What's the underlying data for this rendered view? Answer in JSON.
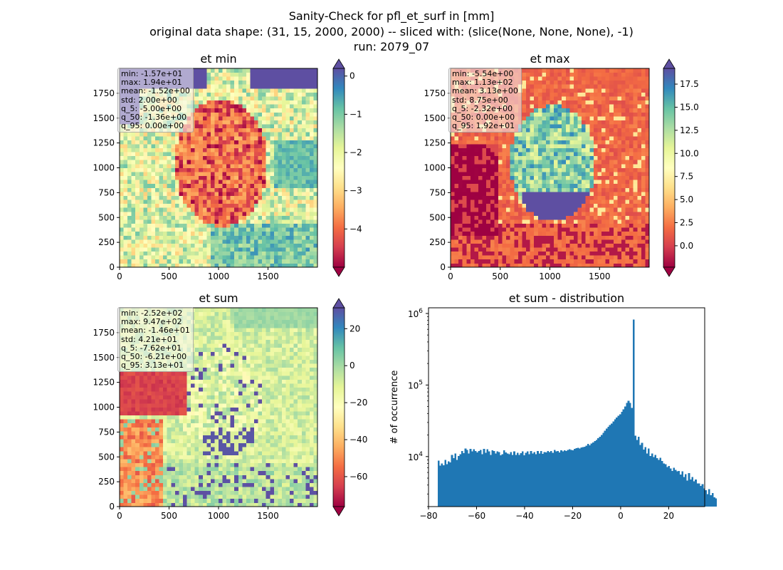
{
  "suptitle": {
    "line1": "Sanity-Check for pfl_et_surf in [mm]",
    "line2": "original data shape: (31, 15, 2000, 2000) -- sliced with: (slice(None, None, None), -1)",
    "line3": "run: 2079_07"
  },
  "colors": {
    "spectral": [
      "#9e0142",
      "#d53e4f",
      "#f46d43",
      "#fdae61",
      "#fee08b",
      "#ffffbf",
      "#e6f598",
      "#abdda4",
      "#66c2a5",
      "#3288bd",
      "#5e4fa2"
    ],
    "hist_bar": "#1f77b4"
  },
  "chart_data": [
    {
      "type": "heatmap",
      "title": "et min",
      "xlim": [
        0,
        2000
      ],
      "ylim": [
        0,
        2000
      ],
      "xticks": [
        0,
        500,
        1000,
        1500
      ],
      "yticks": [
        0,
        250,
        500,
        750,
        1000,
        1250,
        1500,
        1750
      ],
      "colorbar": {
        "range": [
          -5.0,
          0.2
        ],
        "ticks": [
          0,
          -1,
          -2,
          -3,
          -4
        ],
        "extend": "both",
        "cmap": "Spectral"
      },
      "stats": [
        "min: -1.57e+01",
        "max: 1.94e+01",
        "mean: -1.52e+00",
        "std: 2.00e+00",
        "q_5: -5.00e+00",
        "q_50: -1.36e+00",
        "q_95: 0.00e+00"
      ]
    },
    {
      "type": "heatmap",
      "title": "et max",
      "xlim": [
        0,
        2000
      ],
      "ylim": [
        0,
        2000
      ],
      "xticks": [
        0,
        500,
        1000,
        1500
      ],
      "yticks": [
        0,
        250,
        500,
        750,
        1000,
        1250,
        1500,
        1750
      ],
      "colorbar": {
        "range": [
          -2.32,
          19.2
        ],
        "ticks": [
          17.5,
          15.0,
          12.5,
          10.0,
          7.5,
          5.0,
          2.5,
          0.0
        ],
        "tick_labels": [
          "17.5",
          "15.0",
          "12.5",
          "10.0",
          "7.5",
          "5.0",
          "2.5",
          "0.0"
        ],
        "extend": "both",
        "cmap": "Spectral"
      },
      "stats": [
        "min: -5.54e+00",
        "max: 1.13e+02",
        "mean: 3.13e+00",
        "std: 8.75e+00",
        "q_5: -2.32e+00",
        "q_50: 0.00e+00",
        "q_95: 1.92e+01"
      ]
    },
    {
      "type": "heatmap",
      "title": "et sum",
      "xlim": [
        0,
        2000
      ],
      "ylim": [
        0,
        2000
      ],
      "xticks": [
        0,
        500,
        1000,
        1500
      ],
      "yticks": [
        0,
        250,
        500,
        750,
        1000,
        1250,
        1500,
        1750
      ],
      "colorbar": {
        "range": [
          -76.2,
          31.3
        ],
        "ticks": [
          20,
          0,
          -20,
          -40,
          -60
        ],
        "extend": "both",
        "cmap": "Spectral"
      },
      "stats": [
        "min: -2.52e+02",
        "max: 9.47e+02",
        "mean: -1.46e+01",
        "std: 4.21e+01",
        "q_5: -7.62e+01",
        "q_50: -6.21e+00",
        "q_95: 3.13e+01"
      ]
    },
    {
      "type": "bar",
      "title": "et sum - distribution",
      "ylabel": "# of occurrence",
      "yscale": "log",
      "xlim": [
        -80,
        35
      ],
      "ylim": [
        2000,
        1200000
      ],
      "xticks": [
        -80,
        -60,
        -40,
        -20,
        0,
        20
      ],
      "yticks": [
        10000,
        100000,
        1000000
      ],
      "ytick_labels": [
        {
          "base": "10",
          "exp": "4"
        },
        {
          "base": "10",
          "exp": "5"
        },
        {
          "base": "10",
          "exp": "6"
        }
      ],
      "bin_start": -76.2,
      "bin_width": 0.7,
      "values": [
        8800,
        7500,
        8000,
        7600,
        9000,
        7800,
        8600,
        8300,
        10500,
        9500,
        11000,
        9000,
        10200,
        10800,
        12000,
        11200,
        13000,
        12400,
        11000,
        12800,
        11800,
        12600,
        12000,
        11400,
        12000,
        12400,
        10800,
        12800,
        11300,
        12600,
        11800,
        10600,
        12300,
        12000,
        11000,
        11800,
        11600,
        10400,
        10800,
        12200,
        11400,
        11000,
        10800,
        11500,
        10600,
        11800,
        10600,
        11300,
        10500,
        11200,
        11800,
        10400,
        11300,
        11800,
        10800,
        11900,
        11000,
        11600,
        10800,
        12000,
        11100,
        11900,
        10900,
        11600,
        11400,
        12000,
        11500,
        11900,
        11300,
        12400,
        11800,
        11900,
        11400,
        12200,
        11800,
        12200,
        11900,
        12400,
        12600,
        12400,
        12200,
        12800,
        13100,
        13200,
        12900,
        13400,
        13600,
        13800,
        14200,
        15000,
        14400,
        15300,
        15800,
        16500,
        17000,
        18000,
        19000,
        20000,
        21500,
        23000,
        24500,
        26000,
        27500,
        29000,
        31000,
        33000,
        35000,
        37000,
        39000,
        42000,
        46000,
        50000,
        56000,
        60000,
        56000,
        48000,
        820000,
        19500,
        17000,
        19000,
        14500,
        15500,
        12500,
        13500,
        11000,
        13000,
        10200,
        11000,
        9800,
        10500,
        9500,
        9000,
        9600,
        8700,
        8000,
        7800,
        7100,
        7400,
        6800,
        6300,
        7000,
        6500,
        6200,
        6300,
        5600,
        6200,
        5200,
        5700,
        4600,
        5900,
        4800,
        5200,
        4500,
        4800,
        4200,
        4200,
        3900,
        4100,
        3600,
        3400,
        3000,
        3500,
        2900,
        3100,
        2700,
        2600
      ]
    }
  ]
}
